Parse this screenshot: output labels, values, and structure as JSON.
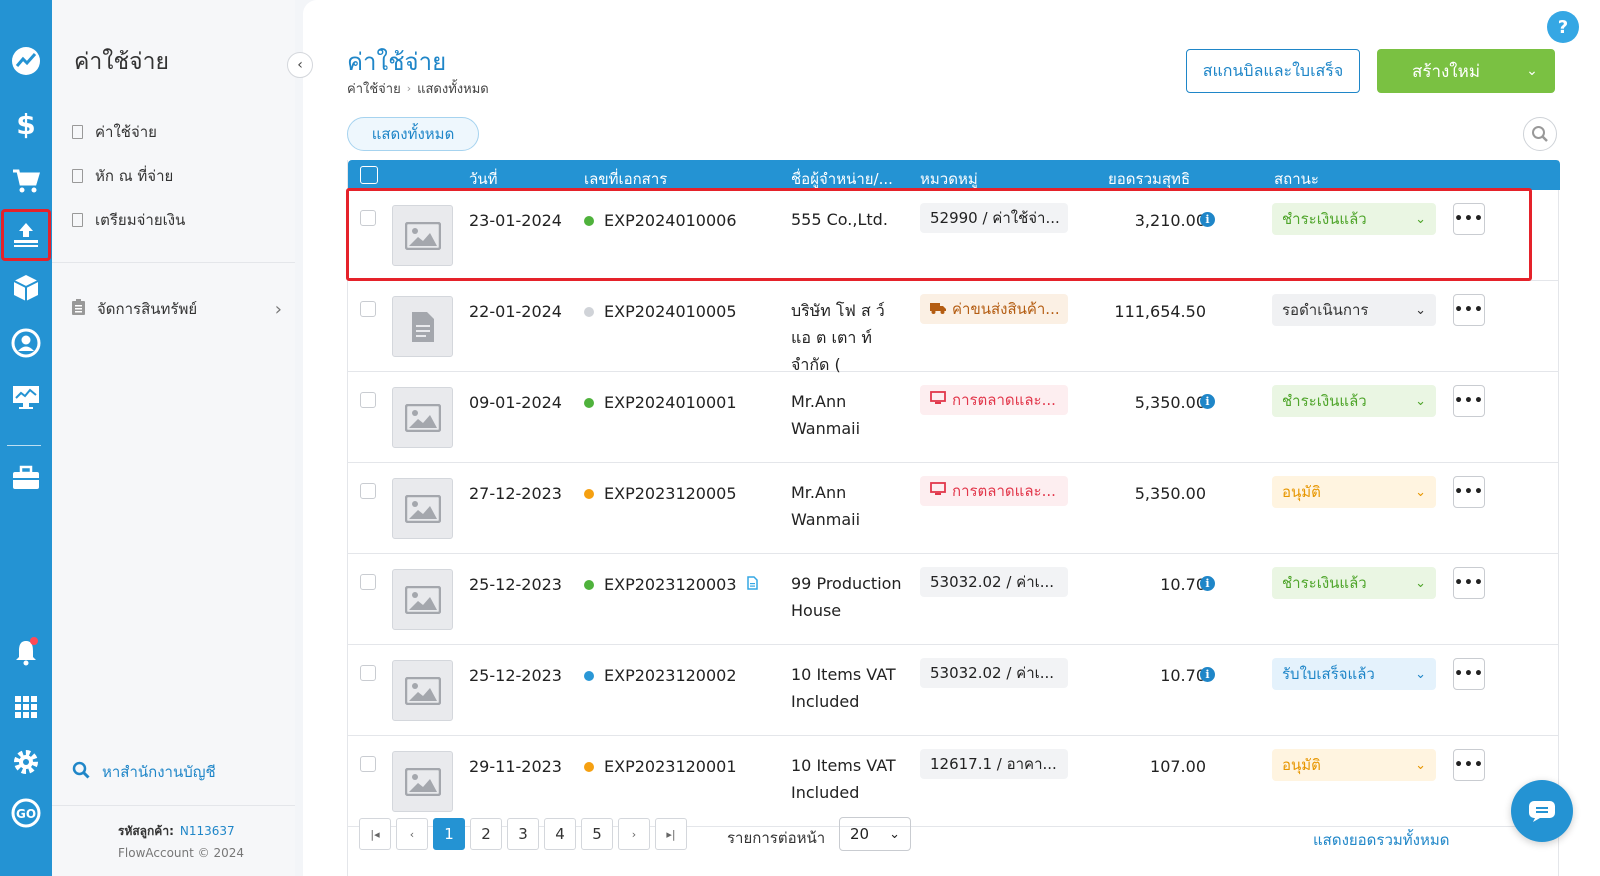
{
  "rail": {
    "items": [
      "dashboard-icon",
      "dollar-icon",
      "cart-icon",
      "expense-upload-icon",
      "box-icon",
      "contact-icon",
      "report-icon",
      "briefcase-icon",
      "bell-icon",
      "apps-grid-icon",
      "gear-icon",
      "flowaccount-go-icon"
    ]
  },
  "sidebar": {
    "title": "ค่าใช้จ่าย",
    "items": [
      {
        "label": "ค่าใช้จ่าย"
      },
      {
        "label": "หัก ณ ที่จ่าย"
      },
      {
        "label": "เตรียมจ่ายเงิน"
      }
    ],
    "assets": "จัดการสินทรัพย์",
    "find_office": "หาสำนักงานบัญชี",
    "customer_code_label": "รหัสลูกค้า:",
    "customer_code": "N113637",
    "copyright": "FlowAccount © 2024"
  },
  "header": {
    "title": "ค่าใช้จ่าย",
    "breadcrumb": [
      "ค่าใช้จ่าย",
      "แสดงทั้งหมด"
    ],
    "scan_button": "สแกนบิลและใบเสร็จ",
    "new_button": "สร้างใหม่",
    "help": "?"
  },
  "filter": {
    "chip": "แสดงทั้งหมด"
  },
  "table": {
    "columns": [
      "วันที่",
      "เลขที่เอกสาร",
      "ชื่อผู้จำหน่าย/...",
      "หมวดหมู่",
      "ยอดรวมสุทธิ",
      "สถานะ"
    ],
    "rows": [
      {
        "date": "23-01-2024",
        "doc": "EXP2024010006",
        "vendor": "555 Co.,Ltd.",
        "category": "52990 / ค่าใช้จ่า...",
        "amount": "3,210.00",
        "status": "ชำระเงินแล้ว"
      },
      {
        "date": "22-01-2024",
        "doc": "EXP2024010005",
        "vendor": "บริษัท โฟ ส ว์ แอ ต เตา ท์ จำกัด (",
        "category": "ค่าขนส่งสินค้า...",
        "amount": "111,654.50",
        "status": "รอดำเนินการ"
      },
      {
        "date": "09-01-2024",
        "doc": "EXP2024010001",
        "vendor": "Mr.Ann Wanmaii",
        "category": "การตลาดและ...",
        "amount": "5,350.00",
        "status": "ชำระเงินแล้ว"
      },
      {
        "date": "27-12-2023",
        "doc": "EXP2023120005",
        "vendor": "Mr.Ann Wanmaii",
        "category": "การตลาดและ...",
        "amount": "5,350.00",
        "status": "อนุมัติ"
      },
      {
        "date": "25-12-2023",
        "doc": "EXP2023120003",
        "vendor": "99 Production House",
        "category": "53032.02 / ค่าเ...",
        "amount": "10.70",
        "status": "ชำระเงินแล้ว"
      },
      {
        "date": "25-12-2023",
        "doc": "EXP2023120002",
        "vendor": "10 Items VAT Included",
        "category": "53032.02 / ค่าเ...",
        "amount": "10.70",
        "status": "รับใบเสร็จแล้ว"
      },
      {
        "date": "29-11-2023",
        "doc": "EXP2023120001",
        "vendor": "10 Items VAT Included",
        "category": "12617.1 / อาคา...",
        "amount": "107.00",
        "status": "อนุมัติ"
      }
    ]
  },
  "pagination": {
    "pages": [
      "1",
      "2",
      "3",
      "4",
      "5"
    ],
    "current": "1",
    "per_page_label": "รายการต่อหน้า",
    "per_page": "20",
    "show_total": "แสดงยอดรวมทั้งหมด"
  },
  "colors": {
    "brand_blue": "#2493d3",
    "primary_green": "#7ac142",
    "status_paid": "#4fa52b",
    "status_approved": "#e79600",
    "status_received": "#1f86c8",
    "highlight": "#e5222a"
  }
}
